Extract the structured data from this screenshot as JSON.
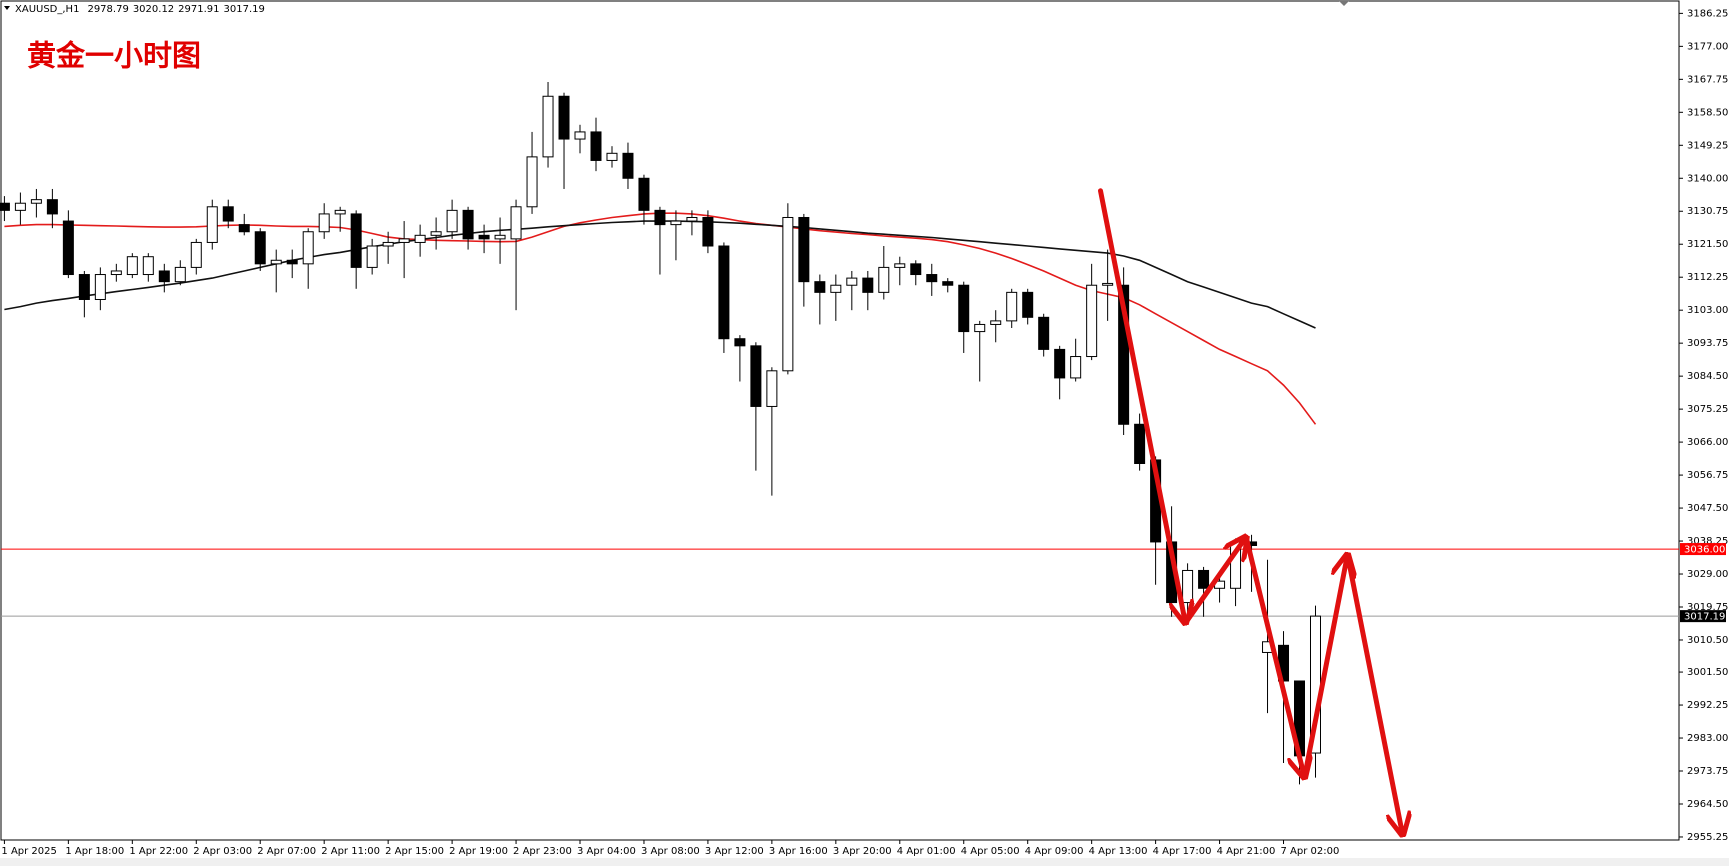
{
  "chart_data": {
    "type": "candlestick",
    "symbol": "XAUUSD_,H1",
    "title": "黄金一小时图",
    "categories": [
      "1 Apr 2025",
      null,
      null,
      null,
      "1 Apr 18:00",
      null,
      null,
      null,
      "1 Apr 22:00",
      null,
      null,
      null,
      "2 Apr 03:00",
      null,
      null,
      null,
      "2 Apr 07:00",
      null,
      null,
      null,
      "2 Apr 11:00",
      null,
      null,
      null,
      "2 Apr 15:00",
      null,
      null,
      null,
      "2 Apr 19:00",
      null,
      null,
      null,
      "2 Apr 23:00",
      null,
      null,
      null,
      "3 Apr 04:00",
      null,
      null,
      null,
      "3 Apr 08:00",
      null,
      null,
      null,
      "3 Apr 12:00",
      null,
      null,
      null,
      "3 Apr 16:00",
      null,
      null,
      null,
      "3 Apr 20:00",
      null,
      null,
      null,
      "4 Apr 01:00",
      null,
      null,
      null,
      "4 Apr 05:00",
      null,
      null,
      null,
      "4 Apr 09:00",
      null,
      null,
      null,
      "4 Apr 13:00",
      null,
      null,
      null,
      "4 Apr 17:00",
      null,
      null,
      null,
      "4 Apr 21:00",
      null,
      null,
      null,
      "7 Apr 02:00",
      null,
      null
    ],
    "ohlc": {
      "open": [
        3133,
        3131,
        3133,
        3134,
        3128,
        3113,
        3106,
        3113,
        3113,
        3113,
        3114,
        3111,
        3115,
        3122,
        3132,
        3127,
        3125,
        3116,
        3117,
        3116,
        3125,
        3130,
        3130,
        3115,
        3121,
        3122,
        3122,
        3124,
        3125,
        3131,
        3124,
        3123,
        3123,
        3132,
        3146,
        3163,
        3151,
        3153,
        3145,
        3147,
        3140,
        3131,
        3127,
        3128,
        3129,
        3121,
        3095,
        3093,
        3076,
        3086,
        3129,
        3111,
        3108,
        3110,
        3112,
        3108,
        3115,
        3116,
        3113,
        3111,
        3110,
        3097,
        3099,
        3100,
        3108,
        3101,
        3092,
        3084,
        3090,
        3110,
        3110,
        3071,
        3061,
        3038,
        3021,
        3030,
        3025,
        3025,
        3038,
        3007,
        3009,
        2999,
        2978.79
      ],
      "high": [
        3135,
        3136,
        3137,
        3137,
        3131,
        3114,
        3115,
        3116,
        3119,
        3119,
        3116,
        3117,
        3123,
        3134,
        3134,
        3130,
        3126,
        3120,
        3120,
        3126,
        3133,
        3132,
        3131,
        3123,
        3125,
        3128,
        3127,
        3129,
        3134,
        3132,
        3127,
        3129,
        3134,
        3153,
        3167,
        3164,
        3155,
        3157,
        3149,
        3150,
        3141,
        3132,
        3131,
        3131,
        3131,
        3122,
        3096,
        3094,
        3087,
        3133,
        3130,
        3113,
        3113,
        3114,
        3114,
        3121,
        3118,
        3117,
        3116,
        3112,
        3111,
        3100,
        3103,
        3109,
        3109,
        3102,
        3093,
        3095,
        3116,
        3120,
        3115,
        3074,
        3062,
        3048,
        3032,
        3031,
        3028,
        3039,
        3040,
        3033,
        3013,
        2999,
        3020.12
      ],
      "low": [
        3128,
        3127,
        3129,
        3126,
        3112,
        3101,
        3103,
        3111,
        3112,
        3111,
        3108,
        3110,
        3113,
        3120,
        3126,
        3124,
        3114,
        3108,
        3112,
        3109,
        3123,
        3125,
        3109,
        3113,
        3116,
        3112,
        3118,
        3120,
        3123,
        3120,
        3119,
        3116,
        3103,
        3130,
        3143,
        3137,
        3147,
        3142,
        3143,
        3137,
        3127,
        3113,
        3117,
        3124,
        3119,
        3091,
        3083,
        3058,
        3051,
        3085,
        3104,
        3099,
        3100,
        3103,
        3103,
        3106,
        3110,
        3110,
        3107,
        3108,
        3091,
        3083,
        3094,
        3098,
        3099,
        3090,
        3078,
        3083,
        3089,
        3100,
        3068,
        3058,
        3026,
        3017,
        3018,
        3017,
        3021,
        3020,
        3024,
        2990,
        2976,
        2970,
        2971.91
      ],
      "close": [
        3131,
        3133,
        3134,
        3130,
        3113,
        3106,
        3113,
        3114,
        3118,
        3118,
        3111,
        3115,
        3122,
        3132,
        3128,
        3125,
        3116,
        3117,
        3116,
        3125,
        3130,
        3131,
        3115,
        3121,
        3122,
        3123,
        3124,
        3125,
        3131,
        3123,
        3123,
        3124,
        3132,
        3146,
        3163,
        3151,
        3153,
        3145,
        3147,
        3140,
        3131,
        3127,
        3128,
        3129,
        3121,
        3095,
        3093,
        3076,
        3086,
        3129,
        3111,
        3108,
        3110,
        3112,
        3108,
        3115,
        3116,
        3113,
        3111,
        3110,
        3097,
        3099,
        3100,
        3108,
        3101,
        3092,
        3084,
        3090,
        3110,
        3110.5,
        3071,
        3060,
        3038,
        3021,
        3030,
        3025,
        3027,
        3038,
        3037,
        3010,
        2999,
        2978,
        3017.19
      ]
    },
    "lines": [
      {
        "color": "#e31b1b",
        "values": [
          3126.5,
          3126.8,
          3127,
          3127,
          3126.9,
          3126.8,
          3126.7,
          3126.6,
          3126.5,
          3126.4,
          3126.3,
          3126.3,
          3126.4,
          3126.6,
          3126.8,
          3126.9,
          3126.8,
          3126.6,
          3126.5,
          3126.5,
          3126.4,
          3126.2,
          3125.5,
          3124.5,
          3123.5,
          3123,
          3122.8,
          3122.6,
          3122.5,
          3122.4,
          3122.3,
          3122.2,
          3122.3,
          3123.5,
          3125,
          3126.5,
          3127.5,
          3128.3,
          3129,
          3129.5,
          3130,
          3130.2,
          3130.2,
          3130,
          3129.5,
          3128.8,
          3128,
          3127.3,
          3126.8,
          3126.3,
          3125.8,
          3125.3,
          3124.9,
          3124.5,
          3124.2,
          3123.8,
          3123.5,
          3123.2,
          3122.8,
          3122.2,
          3121.3,
          3120.3,
          3119,
          3117.5,
          3115.8,
          3114,
          3112,
          3110,
          3108.5,
          3107.5,
          3106.5,
          3104.5,
          3102,
          3099.5,
          3097,
          3094.5,
          3092,
          3090,
          3088,
          3086,
          3082,
          3077,
          3071
        ]
      },
      {
        "color": "#111111",
        "values": [
          3103.2,
          3104,
          3105,
          3105.7,
          3106.3,
          3107,
          3107.6,
          3108.2,
          3108.8,
          3109.4,
          3110,
          3110.6,
          3111.3,
          3112,
          3113,
          3114,
          3115,
          3116,
          3117,
          3117.8,
          3118.6,
          3119.2,
          3120,
          3120.8,
          3121.5,
          3122.2,
          3122.8,
          3123.4,
          3124,
          3124.5,
          3125,
          3125.4,
          3125.7,
          3126,
          3126.4,
          3126.7,
          3127,
          3127.3,
          3127.6,
          3127.8,
          3128,
          3128,
          3128,
          3127.9,
          3127.8,
          3127.6,
          3127.4,
          3127.1,
          3126.8,
          3126.5,
          3126.2,
          3125.8,
          3125.4,
          3125,
          3124.6,
          3124.3,
          3124,
          3123.7,
          3123.4,
          3123,
          3122.6,
          3122.2,
          3121.8,
          3121.4,
          3121,
          3120.6,
          3120.2,
          3119.8,
          3119.4,
          3119,
          3118.2,
          3117,
          3115,
          3113,
          3111,
          3109.5,
          3108,
          3106.5,
          3105,
          3104,
          3102,
          3100,
          3098
        ]
      }
    ],
    "levels": [
      {
        "value": 3036,
        "label": "3036.00",
        "color": "#ff0000"
      },
      {
        "value": 3017.19,
        "label": "3017.19",
        "color": "#9a9a9a"
      }
    ],
    "ylim": [
      2954.4,
      3190.0
    ],
    "yticks": [
      {
        "value": 3186.25,
        "label": "3186.25"
      },
      {
        "value": 3177,
        "label": "3177.00"
      },
      {
        "value": 3167.75,
        "label": "3167.75"
      },
      {
        "value": 3158.5,
        "label": "3158.50"
      },
      {
        "value": 3149.25,
        "label": "3149.25"
      },
      {
        "value": 3140,
        "label": "3140.00"
      },
      {
        "value": 3130.75,
        "label": "3130.75"
      },
      {
        "value": 3121.5,
        "label": "3121.50"
      },
      {
        "value": 3112.25,
        "label": "3112.25"
      },
      {
        "value": 3103,
        "label": "3103.00"
      },
      {
        "value": 3093.75,
        "label": "3093.75"
      },
      {
        "value": 3084.5,
        "label": "3084.50"
      },
      {
        "value": 3075.25,
        "label": "3075.25"
      },
      {
        "value": 3066,
        "label": "3066.00"
      },
      {
        "value": 3056.75,
        "label": "3056.75"
      },
      {
        "value": 3047.5,
        "label": "3047.50"
      },
      {
        "value": 3038.25,
        "label": "3038.25"
      },
      {
        "value": 3029,
        "label": "3029.00"
      },
      {
        "value": 3019.75,
        "label": "3019.75"
      },
      {
        "value": 3010.5,
        "label": "3010.50"
      },
      {
        "value": 3001.5,
        "label": "3001.50"
      },
      {
        "value": 2992.25,
        "label": "2992.25"
      },
      {
        "value": 2983,
        "label": "2983.00"
      },
      {
        "value": 2973.75,
        "label": "2973.75"
      },
      {
        "value": 2964.5,
        "label": "2964.50"
      },
      {
        "value": 2955.25,
        "label": "2955.25"
      }
    ]
  }
}
